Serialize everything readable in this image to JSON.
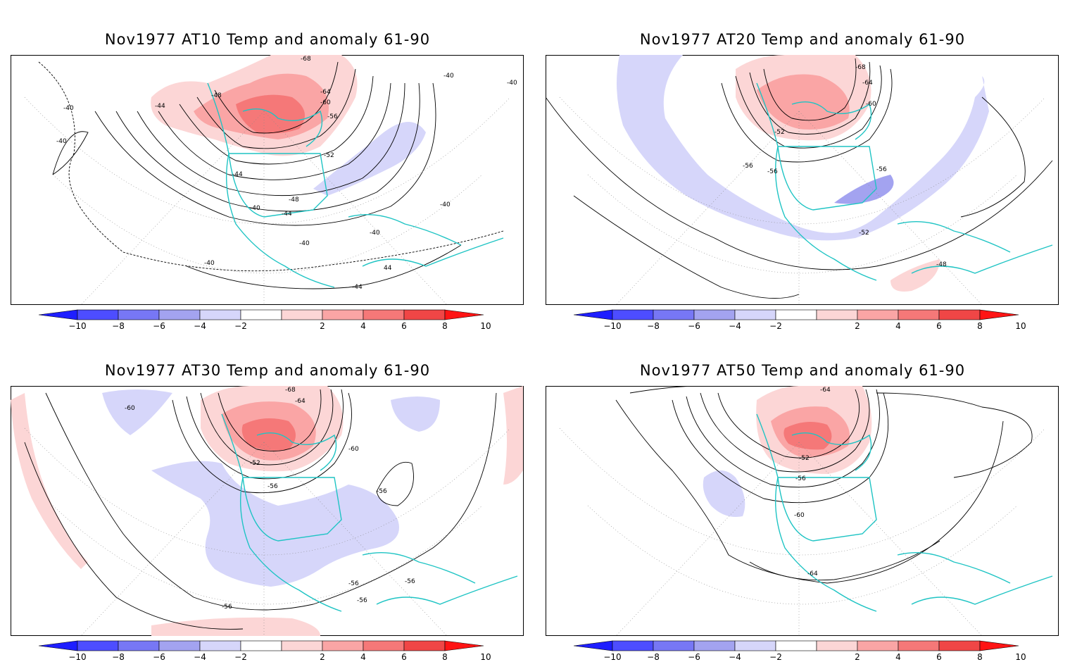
{
  "panels": [
    {
      "title": "Nov1977 AT10 Temp and anomaly 61-90",
      "contour_labels": [
        "-68",
        "-64",
        "-60",
        "-56",
        "-52",
        "-48",
        "-44",
        "-40",
        "-44",
        "-48",
        "-40",
        "-44",
        "-40",
        "-40",
        "-40",
        "-40",
        "-40",
        "-40",
        "44",
        "-44",
        "-40"
      ]
    },
    {
      "title": "Nov1977 AT20 Temp and anomaly 61-90",
      "contour_labels": [
        "-68",
        "-64",
        "-60",
        "-52",
        "-56",
        "-56",
        "-56",
        "-52",
        "-48"
      ]
    },
    {
      "title": "Nov1977 AT30 Temp and anomaly 61-90",
      "contour_labels": [
        "-68",
        "-64",
        "-60",
        "-52",
        "-56",
        "-60",
        "-56",
        "-56",
        "-56",
        "-56",
        "-56"
      ]
    },
    {
      "title": "Nov1977 AT50 Temp and anomaly 61-90",
      "contour_labels": [
        "-64",
        "-52",
        "-56",
        "-60",
        "-64"
      ]
    }
  ],
  "colorbar": {
    "ticks": [
      "-10",
      "-8",
      "-6",
      "-4",
      "-2",
      "2",
      "4",
      "6",
      "8",
      "10"
    ],
    "colors": [
      "#1e1eff",
      "#4d4dff",
      "#7777f5",
      "#a3a3f0",
      "#d6d6fa",
      "#ffffff",
      "#fcd6d6",
      "#faa5a5",
      "#f57878",
      "#f04646",
      "#ff1414"
    ]
  },
  "colors": {
    "coastline": "#1fc4c4",
    "contour": "#000000"
  }
}
